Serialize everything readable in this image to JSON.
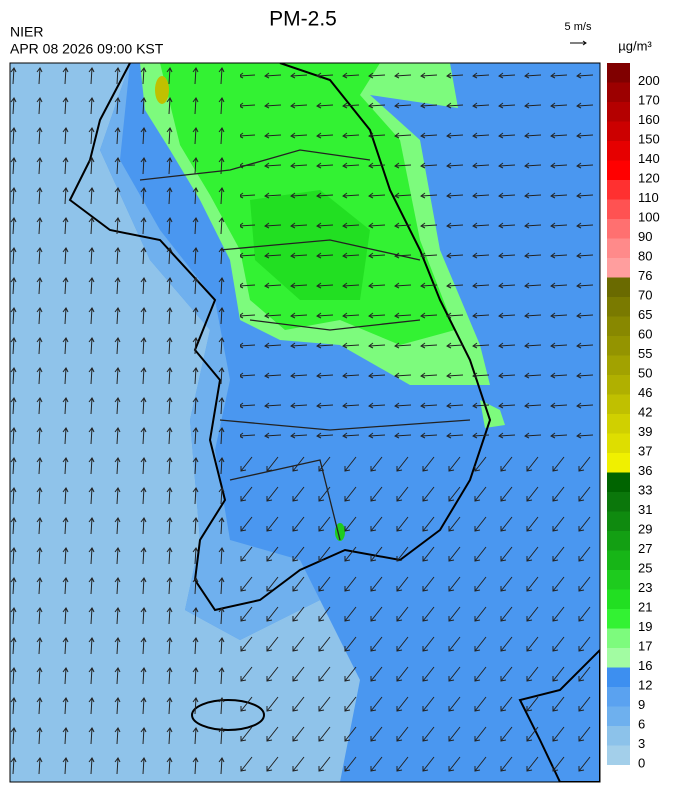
{
  "header": {
    "title": "PM-2.5",
    "agency": "NIER",
    "datetime": "APR 08 2026 09:00 KST"
  },
  "wind_scale": {
    "label": "5 m/s"
  },
  "colorbar": {
    "unit": "µg/m³",
    "levels": [
      0,
      3,
      6,
      9,
      12,
      16,
      17,
      19,
      21,
      23,
      25,
      27,
      29,
      31,
      33,
      36,
      37,
      39,
      42,
      46,
      50,
      55,
      60,
      65,
      70,
      76,
      80,
      90,
      100,
      110,
      120,
      140,
      150,
      160,
      170,
      200
    ],
    "colors": [
      "#a3cfea",
      "#8cc2ea",
      "#6eb0ee",
      "#5aa2f0",
      "#3d8ff0",
      "#a2fca2",
      "#7dfb7d",
      "#33f233",
      "#22df22",
      "#1ecb1e",
      "#17b517",
      "#139f13",
      "#0f8a0f",
      "#0b770b",
      "#006400",
      "#f0f000",
      "#dede00",
      "#d0d000",
      "#c0c000",
      "#b0b000",
      "#a2a200",
      "#949400",
      "#888800",
      "#7a7a00",
      "#6a6a00",
      "#ff9e9e",
      "#ff8a8a",
      "#ff7070",
      "#ff5252",
      "#ff3030",
      "#ff0000",
      "#e60000",
      "#cc0000",
      "#b40000",
      "#9c0000",
      "#800000"
    ]
  }
}
